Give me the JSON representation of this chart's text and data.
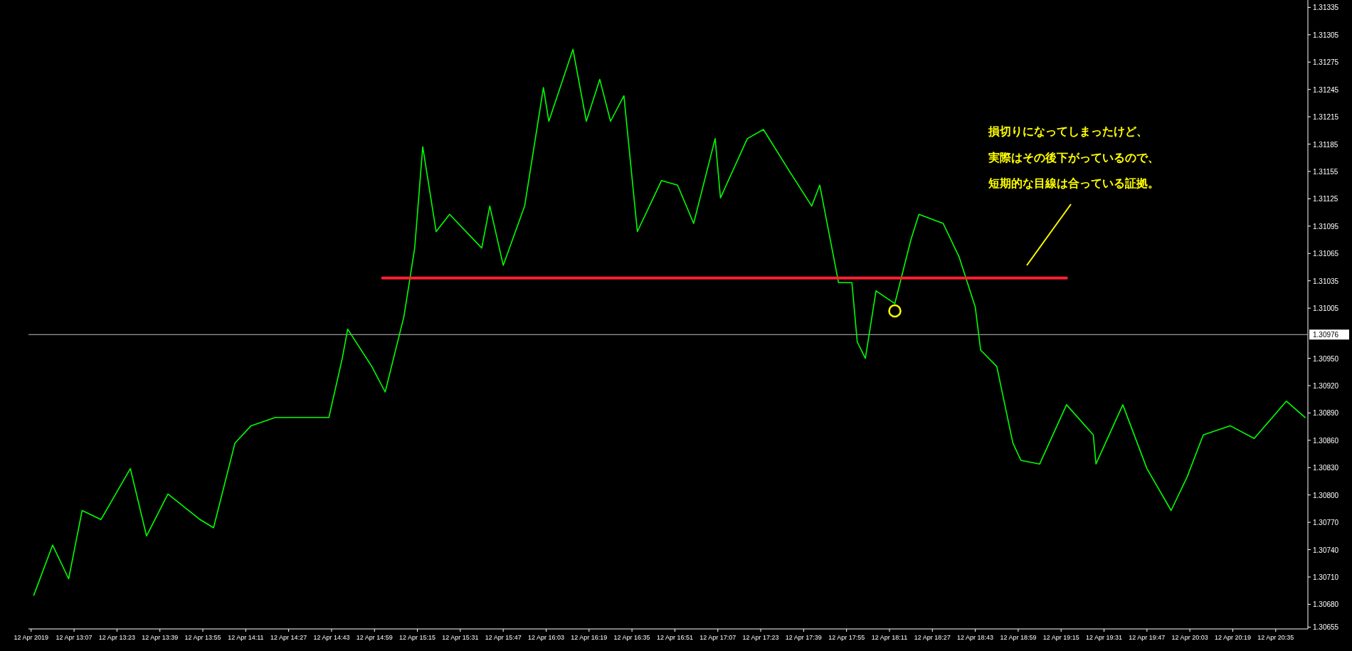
{
  "chart_data": {
    "type": "line",
    "x": [
      "2019-04-12T12:52",
      "2019-04-12T12:59",
      "2019-04-12T13:05",
      "2019-04-12T13:10",
      "2019-04-12T13:17",
      "2019-04-12T13:28",
      "2019-04-12T13:34",
      "2019-04-12T13:42",
      "2019-04-12T13:54",
      "2019-04-12T13:59",
      "2019-04-12T14:07",
      "2019-04-12T14:13",
      "2019-04-12T14:22",
      "2019-04-12T14:42",
      "2019-04-12T14:47",
      "2019-04-12T14:49",
      "2019-04-12T14:58",
      "2019-04-12T15:03",
      "2019-04-12T15:10",
      "2019-04-12T15:14",
      "2019-04-12T15:17",
      "2019-04-12T15:22",
      "2019-04-12T15:27",
      "2019-04-12T15:39",
      "2019-04-12T15:42",
      "2019-04-12T15:47",
      "2019-04-12T15:55",
      "2019-04-12T16:00",
      "2019-04-12T16:02",
      "2019-04-12T16:04",
      "2019-04-12T16:13",
      "2019-04-12T16:18",
      "2019-04-12T16:23",
      "2019-04-12T16:27",
      "2019-04-12T16:32",
      "2019-04-12T16:37",
      "2019-04-12T16:46",
      "2019-04-12T16:52",
      "2019-04-12T16:58",
      "2019-04-12T17:06",
      "2019-04-12T17:08",
      "2019-04-12T17:18",
      "2019-04-12T17:24",
      "2019-04-12T17:34",
      "2019-04-12T17:42",
      "2019-04-12T17:45",
      "2019-04-12T17:52",
      "2019-04-12T17:57",
      "2019-04-12T17:59",
      "2019-04-12T18:02",
      "2019-04-12T18:06",
      "2019-04-12T18:13",
      "2019-04-12T18:19",
      "2019-04-12T18:22",
      "2019-04-12T18:31",
      "2019-04-12T18:37",
      "2019-04-12T18:43",
      "2019-04-12T18:45",
      "2019-04-12T18:51",
      "2019-04-12T18:57",
      "2019-04-12T19:00",
      "2019-04-12T19:07",
      "2019-04-12T19:17",
      "2019-04-12T19:27",
      "2019-04-12T19:28",
      "2019-04-12T19:38",
      "2019-04-12T19:47",
      "2019-04-12T19:56",
      "2019-04-12T20:02",
      "2019-04-12T20:08",
      "2019-04-12T20:18",
      "2019-04-12T20:27",
      "2019-04-12T20:39",
      "2019-04-12T20:46"
    ],
    "series": [
      {
        "color": "#00ff00",
        "values": [
          1.3069,
          1.30745,
          1.30708,
          1.30783,
          1.30773,
          1.30829,
          1.30755,
          1.30801,
          1.30773,
          1.30764,
          1.30857,
          1.30876,
          1.30885,
          1.30885,
          1.3095,
          1.30982,
          1.30941,
          1.30913,
          1.30996,
          1.31071,
          1.31182,
          1.31089,
          1.31108,
          1.31071,
          1.31117,
          1.31052,
          1.31117,
          1.3121,
          1.31247,
          1.3121,
          1.31289,
          1.3121,
          1.31256,
          1.3121,
          1.31238,
          1.31089,
          1.31145,
          1.3114,
          1.31098,
          1.31191,
          1.31126,
          1.31191,
          1.31201,
          1.31154,
          1.31117,
          1.3114,
          1.31033,
          1.31033,
          1.30968,
          1.3095,
          1.31024,
          1.3101,
          1.3108,
          1.31108,
          1.31098,
          1.31061,
          1.31006,
          1.30959,
          1.30941,
          1.30857,
          1.30838,
          1.30834,
          1.30899,
          1.30866,
          1.30834,
          1.30899,
          1.30829,
          1.30783,
          1.3082,
          1.30866,
          1.30876,
          1.30862,
          1.30903,
          1.30885
        ]
      },
      {
        "type": "line",
        "color": "#ff2033",
        "x": [
          "2019-04-12T15:02",
          "2019-04-12T19:17"
        ],
        "values": [
          1.31038,
          1.31038
        ]
      },
      {
        "type": "scatter",
        "marker": "circle",
        "color": "#ffff00",
        "x": [
          "2019-04-12T18:13"
        ],
        "values": [
          1.31002
        ]
      }
    ],
    "xlim": [
      "2019-04-12T12:50",
      "2019-04-12T20:47"
    ],
    "xticks": [
      {
        "value": "2019-04-12T12:51",
        "label": "12 Apr 2019"
      },
      {
        "value": "2019-04-12T13:07",
        "label": "12 Apr 13:07"
      },
      {
        "value": "2019-04-12T13:23",
        "label": "12 Apr 13:23"
      },
      {
        "value": "2019-04-12T13:39",
        "label": "12 Apr 13:39"
      },
      {
        "value": "2019-04-12T13:55",
        "label": "12 Apr 13:55"
      },
      {
        "value": "2019-04-12T14:11",
        "label": "12 Apr 14:11"
      },
      {
        "value": "2019-04-12T14:27",
        "label": "12 Apr 14:27"
      },
      {
        "value": "2019-04-12T14:43",
        "label": "12 Apr 14:43"
      },
      {
        "value": "2019-04-12T14:59",
        "label": "12 Apr 14:59"
      },
      {
        "value": "2019-04-12T15:15",
        "label": "12 Apr 15:15"
      },
      {
        "value": "2019-04-12T15:31",
        "label": "12 Apr 15:31"
      },
      {
        "value": "2019-04-12T15:47",
        "label": "12 Apr 15:47"
      },
      {
        "value": "2019-04-12T16:03",
        "label": "12 Apr 16:03"
      },
      {
        "value": "2019-04-12T16:19",
        "label": "12 Apr 16:19"
      },
      {
        "value": "2019-04-12T16:35",
        "label": "12 Apr 16:35"
      },
      {
        "value": "2019-04-12T16:51",
        "label": "12 Apr 16:51"
      },
      {
        "value": "2019-04-12T17:07",
        "label": "12 Apr 17:07"
      },
      {
        "value": "2019-04-12T17:23",
        "label": "12 Apr 17:23"
      },
      {
        "value": "2019-04-12T17:39",
        "label": "12 Apr 17:39"
      },
      {
        "value": "2019-04-12T17:55",
        "label": "12 Apr 17:55"
      },
      {
        "value": "2019-04-12T18:11",
        "label": "12 Apr 18:11"
      },
      {
        "value": "2019-04-12T18:27",
        "label": "12 Apr 18:27"
      },
      {
        "value": "2019-04-12T18:43",
        "label": "12 Apr 18:43"
      },
      {
        "value": "2019-04-12T18:59",
        "label": "12 Apr 18:59"
      },
      {
        "value": "2019-04-12T19:15",
        "label": "12 Apr 19:15"
      },
      {
        "value": "2019-04-12T19:31",
        "label": "12 Apr 19:31"
      },
      {
        "value": "2019-04-12T19:47",
        "label": "12 Apr 19:47"
      },
      {
        "value": "2019-04-12T20:03",
        "label": "12 Apr 20:03"
      },
      {
        "value": "2019-04-12T20:19",
        "label": "12 Apr 20:19"
      },
      {
        "value": "2019-04-12T20:35",
        "label": "12 Apr 20:35"
      }
    ],
    "ylim": [
      1.30653,
      1.3134
    ],
    "yticks": [
      {
        "value": 1.30655,
        "label": "1.30655"
      },
      {
        "value": 1.3068,
        "label": "1.30680"
      },
      {
        "value": 1.3071,
        "label": "1.30710"
      },
      {
        "value": 1.3074,
        "label": "1.30740"
      },
      {
        "value": 1.3077,
        "label": "1.30770"
      },
      {
        "value": 1.308,
        "label": "1.30800"
      },
      {
        "value": 1.3083,
        "label": "1.30830"
      },
      {
        "value": 1.3086,
        "label": "1.30860"
      },
      {
        "value": 1.3089,
        "label": "1.30890"
      },
      {
        "value": 1.3092,
        "label": "1.30920"
      },
      {
        "value": 1.3095,
        "label": "1.30950"
      },
      1.31005,
      1.31035,
      1.31065,
      1.31095,
      1.31125,
      1.31155,
      1.31185,
      1.31215,
      1.31245,
      1.31275,
      1.31305,
      1.31335
    ],
    "ref_lines": [
      {
        "axis": "y",
        "value": 1.30976,
        "label": "1.30976",
        "color": "#c0c0c0"
      }
    ],
    "annotations": [
      "損切りになってしまったけど、",
      "実際はその後下がっているので、",
      "短期的な目線は合っている証拠。"
    ],
    "grid": false
  }
}
